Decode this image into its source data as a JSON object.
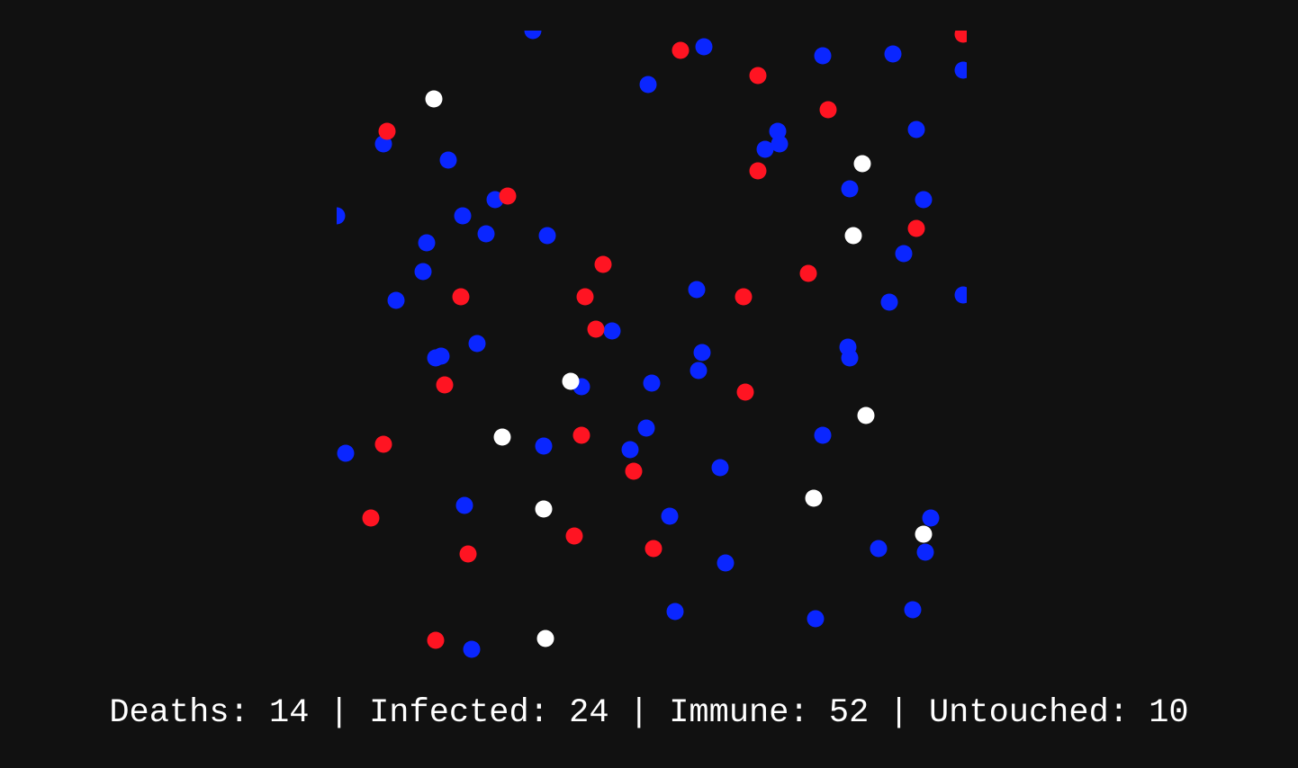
{
  "colors": {
    "background": "#111111",
    "immune": "#0a26ff",
    "infected": "#ff1422",
    "untouched": "#ffffff",
    "text": "#ffffff"
  },
  "stats": {
    "deaths_label": "Deaths:",
    "deaths": "14",
    "infected_label": "Infected:",
    "infected": "24",
    "immune_label": "Immune:",
    "immune": "52",
    "untouched_label": "Untouched:",
    "untouched": "10",
    "separator": "|"
  }
}
